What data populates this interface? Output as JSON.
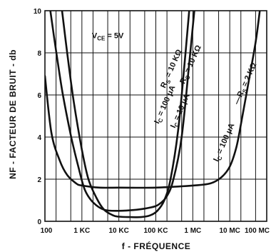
{
  "chart_data": {
    "type": "line",
    "xscale": "log",
    "xlim": [
      100,
      100000000
    ],
    "ylim": [
      0,
      10
    ],
    "grid": true,
    "xlabel": "f  -  FRÉQUENCE",
    "ylabel": "NF  -  FACTEUR  DE  BRUIT  -  db",
    "x_ticks": [
      {
        "value": 100,
        "label": "100"
      },
      {
        "value": 1000,
        "label": "1 KC"
      },
      {
        "value": 10000,
        "label": "10 KC"
      },
      {
        "value": 100000,
        "label": "100 KC"
      },
      {
        "value": 1000000,
        "label": "1 MC"
      },
      {
        "value": 10000000,
        "label": "10 MC"
      },
      {
        "value": 100000000,
        "label": "100 MC"
      }
    ],
    "y_ticks": [
      {
        "value": 0,
        "label": "0"
      },
      {
        "value": 2,
        "label": "2"
      },
      {
        "value": 4,
        "label": "4"
      },
      {
        "value": 6,
        "label": "6"
      },
      {
        "value": 8,
        "label": "8"
      },
      {
        "value": 10,
        "label": "10"
      }
    ],
    "annotations": [
      {
        "text": "V",
        "sub": "CE",
        "after": " = 5V",
        "at_x": 5000,
        "at_y": 8.7,
        "rotate": 0
      },
      {
        "text": "R",
        "sub": "S",
        "after": " = 10 KΩ",
        "at_x": 300000,
        "at_y": 7.2,
        "rotate": -66
      },
      {
        "text": "R",
        "sub": "S",
        "after": " = 10 KΩ",
        "at_x": 1000000,
        "at_y": 7.4,
        "rotate": -66
      },
      {
        "text": "I",
        "sub": "C",
        "after": " = 100 μA",
        "at_x": 200000,
        "at_y": 5.5,
        "rotate": -66
      },
      {
        "text": "I",
        "sub": "C",
        "after": " = 10 μA",
        "at_x": 520000,
        "at_y": 5.2,
        "rotate": -66
      },
      {
        "text": "I",
        "sub": "C",
        "after": " = 100 μA",
        "at_x": 8000000,
        "at_y": 3.7,
        "rotate": -66
      },
      {
        "text": "—R",
        "sub": "S",
        "after": " = 2 KΩ",
        "at_x": 30000000,
        "at_y": 6.5,
        "rotate": -66
      }
    ],
    "series": [
      {
        "points": [
          [
            100,
            6.9
          ],
          [
            150,
            4.2
          ],
          [
            250,
            2.9
          ],
          [
            400,
            2.2
          ],
          [
            700,
            1.8
          ],
          [
            1000,
            1.7
          ],
          [
            3000,
            1.6
          ],
          [
            10000,
            1.6
          ],
          [
            100000,
            1.6
          ],
          [
            1000000,
            1.7
          ],
          [
            3000000,
            1.8
          ],
          [
            6000000,
            2.1
          ],
          [
            10000000,
            2.6
          ],
          [
            15000000,
            3.5
          ],
          [
            20000000,
            4.6
          ],
          [
            30000000,
            6.3
          ],
          [
            50000000,
            8.5
          ],
          [
            65000000,
            10
          ]
        ]
      },
      {
        "points": [
          [
            140,
            10
          ],
          [
            200,
            8.1
          ],
          [
            300,
            6.1
          ],
          [
            500,
            4.1
          ],
          [
            800,
            2.6
          ],
          [
            1200,
            1.5
          ],
          [
            2000,
            0.9
          ],
          [
            4000,
            0.55
          ],
          [
            10000,
            0.5
          ],
          [
            30000,
            0.55
          ],
          [
            70000,
            0.65
          ],
          [
            120000,
            0.8
          ],
          [
            200000,
            1.2
          ],
          [
            300000,
            2
          ],
          [
            500000,
            4
          ],
          [
            800000,
            7.5
          ],
          [
            1100000,
            10
          ]
        ]
      },
      {
        "points": [
          [
            290,
            10
          ],
          [
            400,
            8
          ],
          [
            600,
            5.7
          ],
          [
            1000,
            3.4
          ],
          [
            1500,
            2
          ],
          [
            2500,
            1.1
          ],
          [
            4000,
            0.55
          ],
          [
            7000,
            0.28
          ],
          [
            10000,
            0.22
          ],
          [
            20000,
            0.2
          ],
          [
            40000,
            0.2
          ],
          [
            70000,
            0.28
          ],
          [
            110000,
            0.5
          ],
          [
            170000,
            1
          ],
          [
            250000,
            2
          ],
          [
            400000,
            4.3
          ],
          [
            600000,
            7.5
          ],
          [
            800000,
            10
          ]
        ]
      }
    ]
  }
}
